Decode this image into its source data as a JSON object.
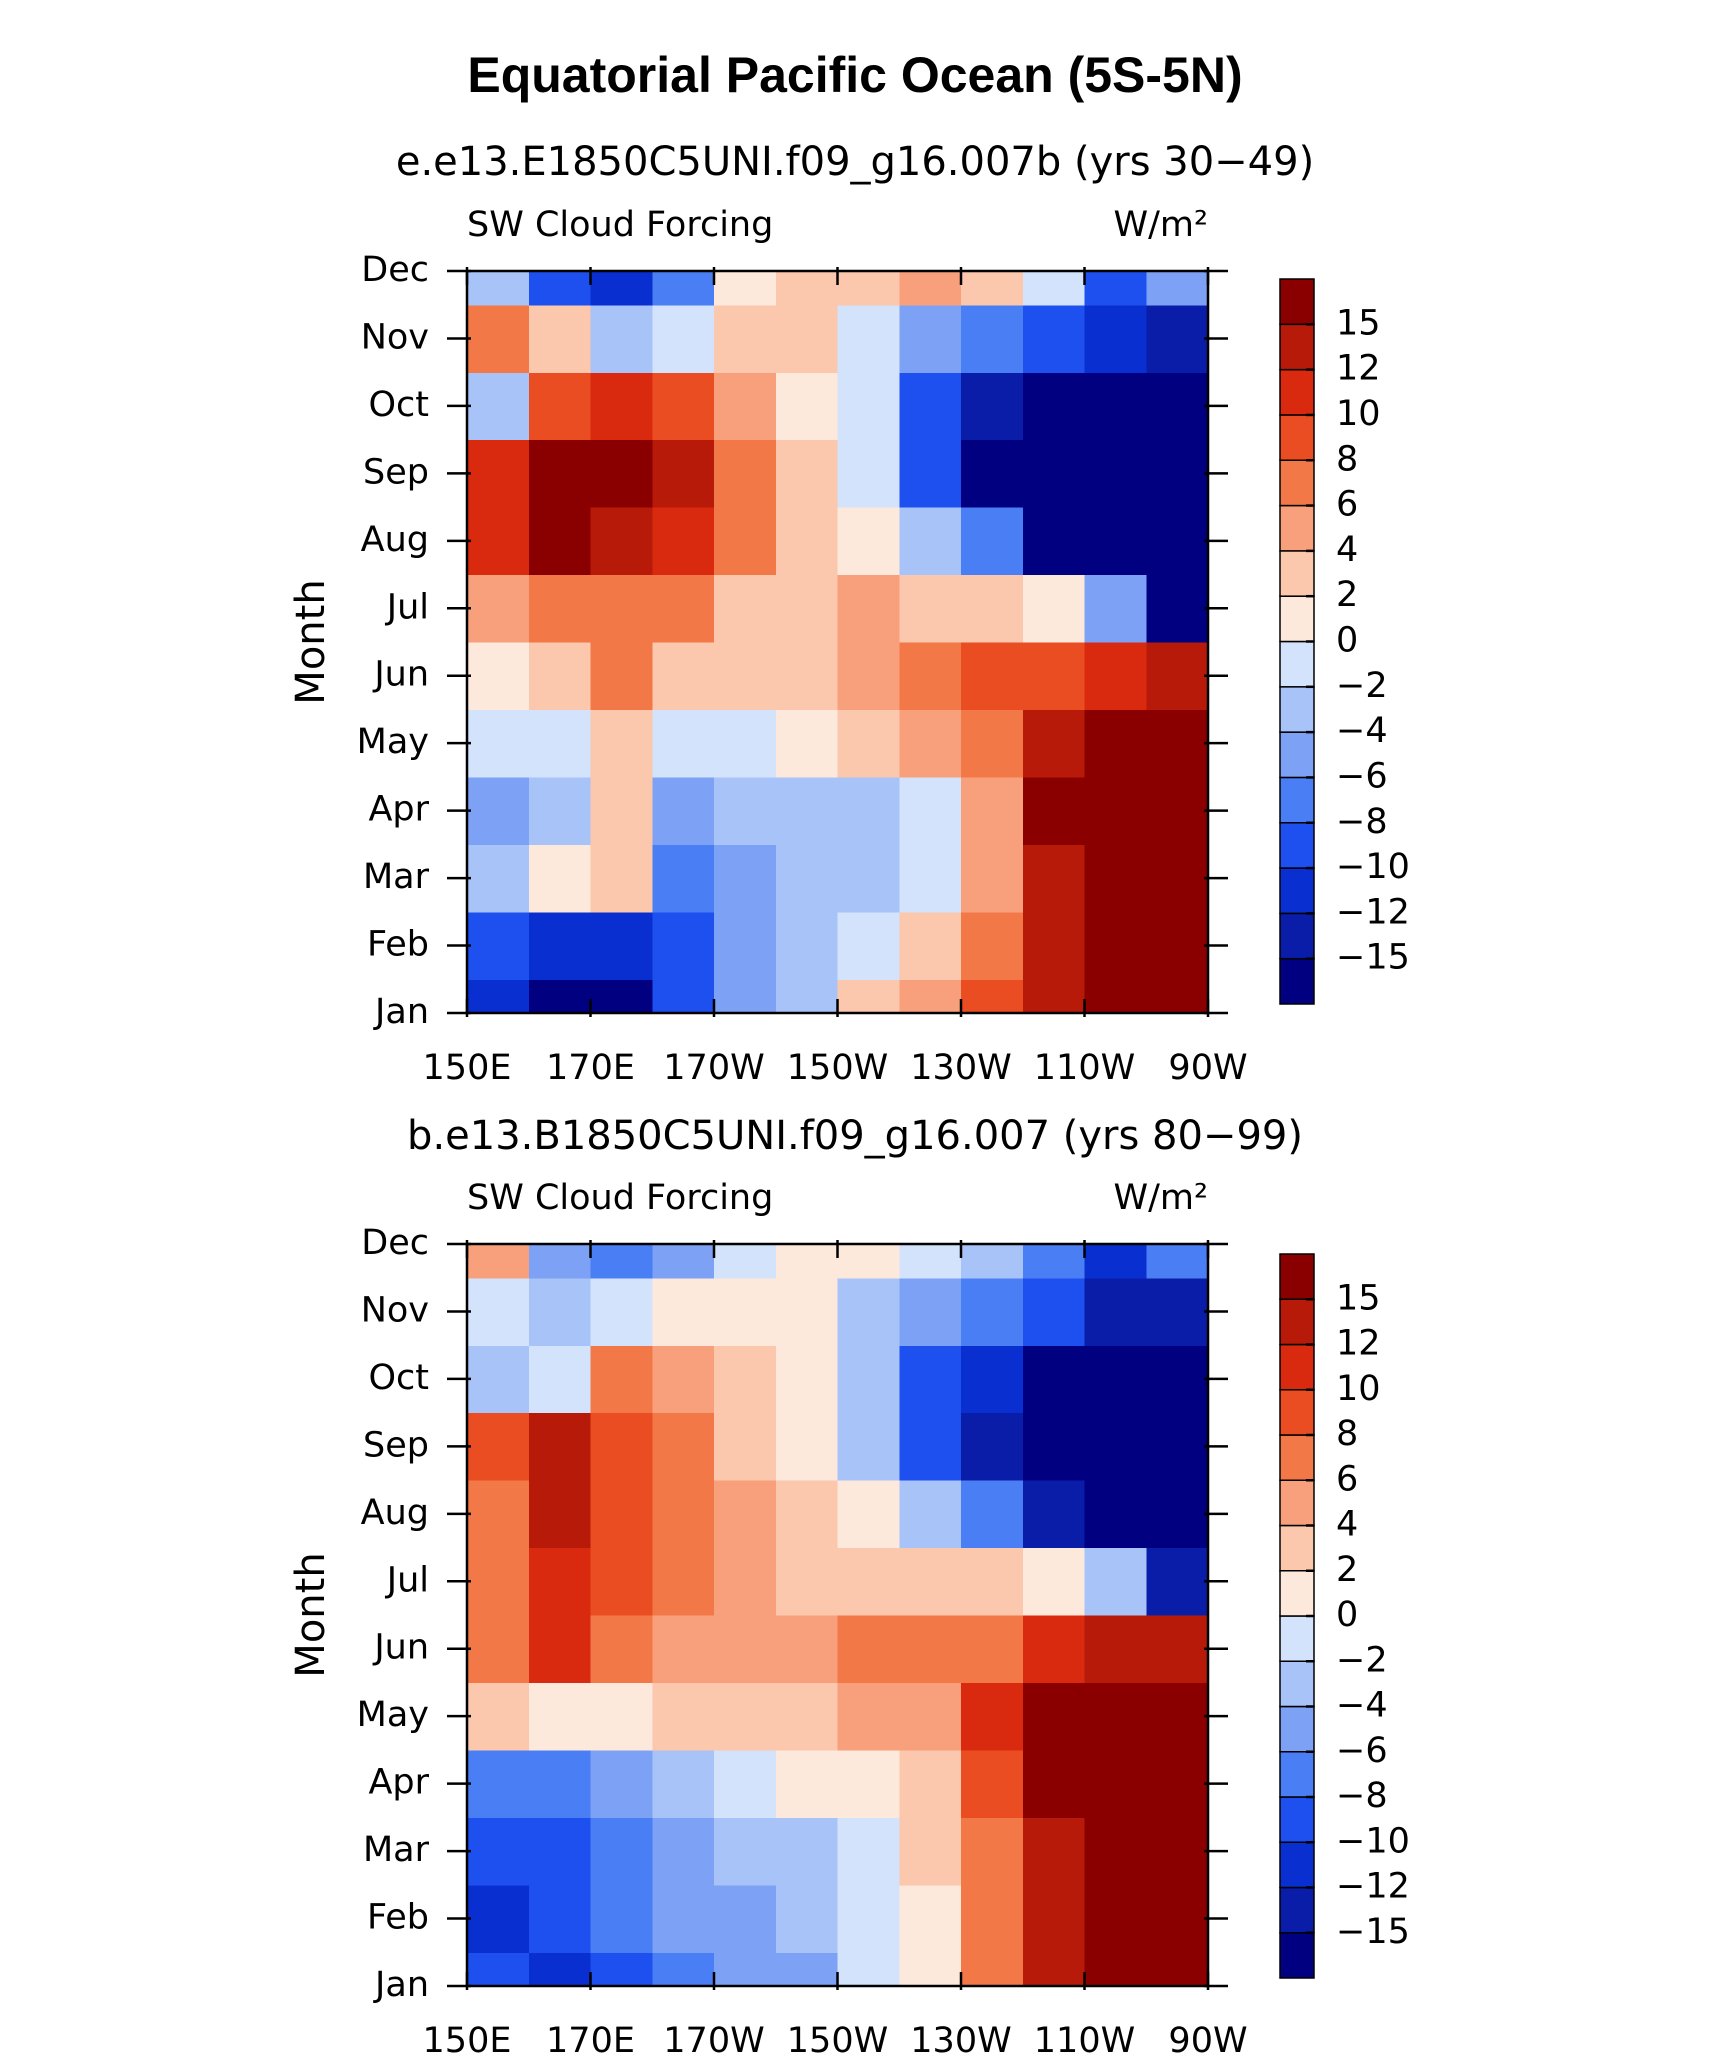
{
  "title": "Equatorial Pacific Ocean (5S-5N)",
  "chart_data": [
    {
      "type": "heatmap",
      "title": "e.e13.E1850C5UNI.f09_g16.007b (yrs 30−49)",
      "left_string": "SW Cloud Forcing",
      "right_string": "W/m²",
      "y_label": "Month",
      "categories": [
        "Jan",
        "Feb",
        "Mar",
        "Apr",
        "May",
        "Jun",
        "Jul",
        "Aug",
        "Sep",
        "Oct",
        "Nov",
        "Dec"
      ],
      "x": [
        155,
        165,
        175,
        185,
        195,
        205,
        215,
        225,
        235,
        245,
        255,
        265
      ],
      "xlim": [
        150,
        270
      ],
      "xticks": [
        {
          "value": 150,
          "label": "150E"
        },
        {
          "value": 170,
          "label": "170E"
        },
        {
          "value": 190,
          "label": "170W"
        },
        {
          "value": 210,
          "label": "150W"
        },
        {
          "value": 230,
          "label": "130W"
        },
        {
          "value": 250,
          "label": "110W"
        },
        {
          "value": 270,
          "label": "90W"
        }
      ],
      "z": [
        [
          -12,
          -16,
          -16,
          -9,
          -6,
          -3,
          2,
          4,
          8,
          14,
          16,
          16
        ],
        [
          -10,
          -12,
          -12,
          -10,
          -6,
          -4,
          -2,
          2,
          6,
          12,
          16,
          16
        ],
        [
          -4,
          1,
          2,
          -8,
          -6,
          -4,
          -3,
          -2,
          4,
          14,
          16,
          16
        ],
        [
          -6,
          -3,
          2,
          -6,
          -4,
          -4,
          -3,
          -1,
          4,
          16,
          16,
          16
        ],
        [
          -2,
          -1,
          2,
          -2,
          -1,
          1,
          2,
          4,
          6,
          12,
          16,
          16
        ],
        [
          1,
          3,
          6,
          3,
          3,
          2,
          4,
          6,
          8,
          8,
          10,
          12
        ],
        [
          4,
          6,
          6,
          6,
          3,
          3,
          4,
          3,
          2,
          0,
          -6,
          -16
        ],
        [
          10,
          16,
          14,
          10,
          6,
          2,
          0,
          -4,
          -8,
          -16,
          -16,
          -16
        ],
        [
          10,
          16,
          16,
          12,
          6,
          2,
          -2,
          -10,
          -16,
          -16,
          -16,
          -16
        ],
        [
          -4,
          8,
          10,
          8,
          4,
          1,
          -2,
          -10,
          -14,
          -16,
          -16,
          -16
        ],
        [
          6,
          2,
          -4,
          -2,
          2,
          2,
          -2,
          -6,
          -8,
          -10,
          -12,
          -14
        ],
        [
          -4,
          -10,
          -12,
          -8,
          0,
          2,
          2,
          4,
          2,
          -2,
          -10,
          -6
        ]
      ],
      "levels": [
        {
          "value": -15,
          "label": "−15"
        },
        {
          "value": -12,
          "label": "−12"
        },
        {
          "value": -10,
          "label": "−10"
        },
        {
          "value": -8,
          "label": "−8"
        },
        {
          "value": -6,
          "label": "−6"
        },
        {
          "value": -4,
          "label": "−4"
        },
        {
          "value": -2,
          "label": "−2"
        },
        0,
        2,
        4,
        6,
        8,
        10,
        12,
        15
      ],
      "colors": [
        "#000080",
        "#0a1da8",
        "#0a2fd0",
        "#1e50f0",
        "#4a7ef5",
        "#7da2f5",
        "#a8c3f7",
        "#d3e3fb",
        "#fde9dc",
        "#fbc7ad",
        "#f8a07c",
        "#f27848",
        "#ea4d22",
        "#d92a10",
        "#b81a0a",
        "#8a0000"
      ]
    },
    {
      "type": "heatmap",
      "title": "b.e13.B1850C5UNI.f09_g16.007 (yrs 80−99)",
      "left_string": "SW Cloud Forcing",
      "right_string": "W/m²",
      "y_label": "Month",
      "categories": [
        "Jan",
        "Feb",
        "Mar",
        "Apr",
        "May",
        "Jun",
        "Jul",
        "Aug",
        "Sep",
        "Oct",
        "Nov",
        "Dec"
      ],
      "x": [
        155,
        165,
        175,
        185,
        195,
        205,
        215,
        225,
        235,
        245,
        255,
        265
      ],
      "xlim": [
        150,
        270
      ],
      "xticks": [
        {
          "value": 150,
          "label": "150E"
        },
        {
          "value": 170,
          "label": "170E"
        },
        {
          "value": 190,
          "label": "170W"
        },
        {
          "value": 210,
          "label": "150W"
        },
        {
          "value": 230,
          "label": "130W"
        },
        {
          "value": 250,
          "label": "110W"
        },
        {
          "value": 270,
          "label": "90W"
        }
      ],
      "z": [
        [
          -10,
          -12,
          -10,
          -8,
          -6,
          -6,
          -2,
          0,
          6,
          14,
          16,
          16
        ],
        [
          -12,
          -10,
          -8,
          -6,
          -6,
          -4,
          -2,
          1,
          6,
          14,
          16,
          16
        ],
        [
          -10,
          -10,
          -8,
          -6,
          -4,
          -3,
          -1,
          2,
          6,
          14,
          16,
          16
        ],
        [
          -8,
          -8,
          -6,
          -4,
          -2,
          0,
          1,
          2,
          8,
          16,
          16,
          16
        ],
        [
          2,
          0,
          1,
          2,
          2,
          3,
          4,
          4,
          10,
          16,
          16,
          16
        ],
        [
          6,
          10,
          6,
          4,
          4,
          4,
          6,
          6,
          6,
          10,
          12,
          14
        ],
        [
          6,
          10,
          8,
          6,
          4,
          3,
          3,
          2,
          2,
          0,
          -4,
          -14
        ],
        [
          6,
          12,
          8,
          6,
          4,
          2,
          0,
          -4,
          -8,
          -14,
          -16,
          -16
        ],
        [
          8,
          12,
          8,
          6,
          3,
          1,
          -3,
          -10,
          -14,
          -16,
          -16,
          -16
        ],
        [
          -4,
          -1,
          6,
          4,
          2,
          0,
          -4,
          -10,
          -12,
          -16,
          -16,
          -16
        ],
        [
          -2,
          -4,
          -2,
          0,
          1,
          0,
          -4,
          -6,
          -8,
          -10,
          -14,
          -14
        ],
        [
          4,
          -6,
          -8,
          -6,
          -2,
          1,
          0,
          -2,
          -4,
          -8,
          -12,
          -8
        ]
      ],
      "levels": [
        {
          "value": -15,
          "label": "−15"
        },
        {
          "value": -12,
          "label": "−12"
        },
        {
          "value": -10,
          "label": "−10"
        },
        {
          "value": -8,
          "label": "−8"
        },
        {
          "value": -6,
          "label": "−6"
        },
        {
          "value": -4,
          "label": "−4"
        },
        {
          "value": -2,
          "label": "−2"
        },
        0,
        2,
        4,
        6,
        8,
        10,
        12,
        15
      ],
      "colors": [
        "#000080",
        "#0a1da8",
        "#0a2fd0",
        "#1e50f0",
        "#4a7ef5",
        "#7da2f5",
        "#a8c3f7",
        "#d3e3fb",
        "#fde9dc",
        "#fbc7ad",
        "#f8a07c",
        "#f27848",
        "#ea4d22",
        "#d92a10",
        "#b81a0a",
        "#8a0000"
      ]
    }
  ]
}
